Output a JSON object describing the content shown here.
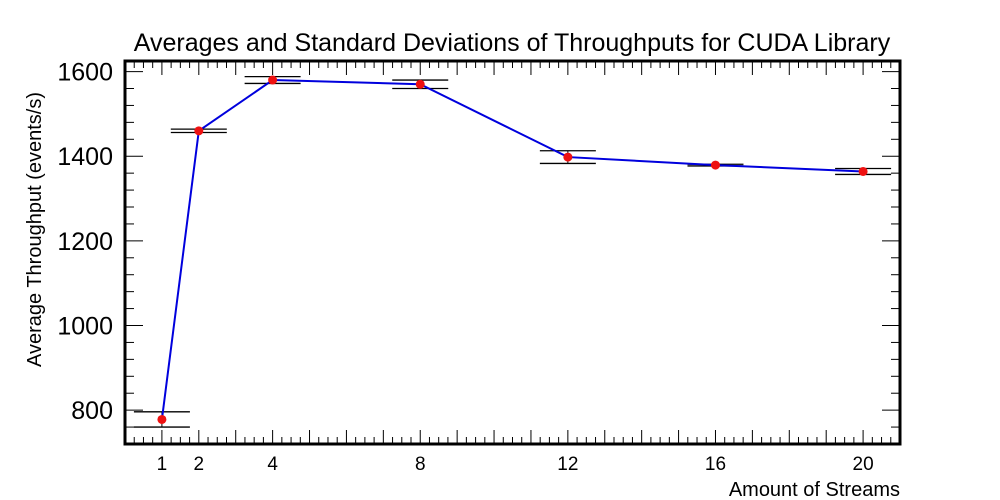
{
  "chart_data": {
    "type": "line",
    "title": "Averages and Standard Deviations of Throughputs for CUDA Library",
    "xlabel": "Amount of Streams",
    "ylabel": "Average Throughput (events/s)",
    "x": [
      1,
      2,
      4,
      8,
      12,
      16,
      20
    ],
    "xticks": [
      "1",
      "2",
      "4",
      "8",
      "12",
      "16",
      "20"
    ],
    "yticks": [
      "800",
      "1000",
      "1200",
      "1400",
      "1600"
    ],
    "xlim": [
      0,
      21
    ],
    "ylim": [
      720,
      1625
    ],
    "grid": false,
    "series": [
      {
        "values": [
          778,
          1460,
          1580,
          1570,
          1398,
          1379,
          1364
        ],
        "errors": [
          18,
          4,
          8,
          10,
          15,
          2,
          7
        ],
        "line_color": "#0000dd",
        "marker_color": "#ee1111",
        "errorbar_color": "#000000"
      }
    ]
  }
}
